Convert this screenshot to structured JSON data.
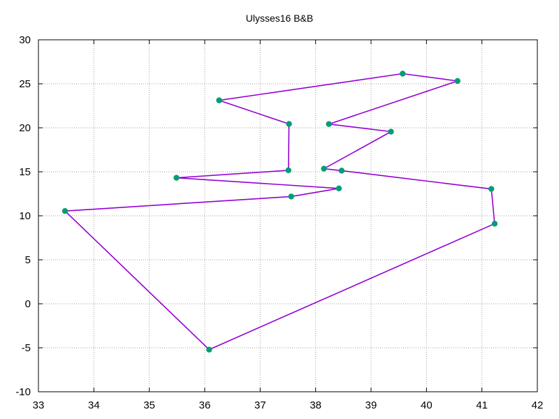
{
  "chart_data": {
    "type": "line",
    "title": "Ulysses16 B&B",
    "xlabel": "",
    "ylabel": "",
    "xlim": [
      33,
      42
    ],
    "ylim": [
      -10,
      30
    ],
    "x_ticks": [
      33,
      34,
      35,
      36,
      37,
      38,
      39,
      40,
      41,
      42
    ],
    "y_ticks": [
      -10,
      -5,
      0,
      5,
      10,
      15,
      20,
      25,
      30
    ],
    "grid": true,
    "line_color": "#9400d3",
    "marker_color": "#009e73",
    "series": [
      {
        "x": [
          36.26,
          39.57,
          40.56,
          38.24,
          39.36,
          38.15,
          38.47,
          41.17,
          41.23,
          36.08,
          33.48,
          37.56,
          38.42,
          35.49,
          37.51,
          37.52,
          36.26
        ],
        "y": [
          23.12,
          26.15,
          25.32,
          20.42,
          19.56,
          15.35,
          15.13,
          13.05,
          9.1,
          -5.21,
          10.54,
          12.19,
          13.11,
          14.32,
          15.17,
          20.44,
          23.12
        ]
      }
    ]
  }
}
